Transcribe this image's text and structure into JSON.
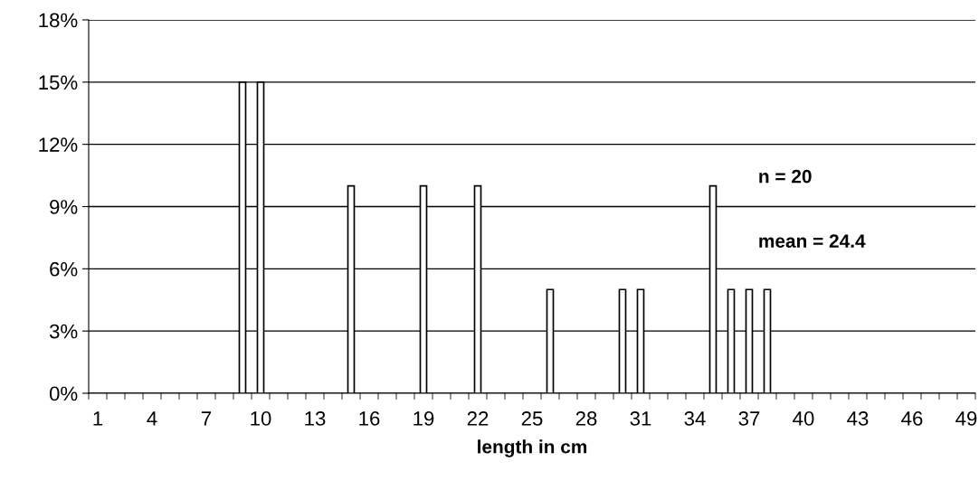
{
  "chart_data": {
    "type": "bar",
    "xlabel": "length in cm",
    "categories": [
      "1",
      null,
      null,
      "4",
      null,
      null,
      "7",
      null,
      null,
      "10",
      null,
      null,
      "13",
      null,
      null,
      "16",
      null,
      null,
      "19",
      null,
      null,
      "22",
      null,
      null,
      "25",
      null,
      null,
      "28",
      null,
      null,
      "31",
      null,
      null,
      "34",
      null,
      null,
      "37",
      null,
      null,
      "40",
      null,
      null,
      "43",
      null,
      null,
      "46",
      null,
      null,
      "49"
    ],
    "values": [
      0,
      0,
      0,
      0,
      0,
      0,
      0,
      0,
      15,
      15,
      0,
      0,
      0,
      0,
      10,
      0,
      0,
      0,
      10,
      0,
      0,
      10,
      0,
      0,
      0,
      5,
      0,
      0,
      0,
      5,
      5,
      0,
      0,
      0,
      10,
      5,
      5,
      5,
      0,
      0,
      0,
      0,
      0,
      0,
      0,
      0,
      0,
      0,
      0
    ],
    "color": "#ffffff",
    "ylim": [
      0,
      18
    ],
    "yticks": [
      {
        "value": 0,
        "label": "0%"
      },
      {
        "value": 3,
        "label": "3%"
      },
      {
        "value": 6,
        "label": "6%"
      },
      {
        "value": 9,
        "label": "9%"
      },
      {
        "value": 12,
        "label": "12%"
      },
      {
        "value": 15,
        "label": "15%"
      },
      {
        "value": 18,
        "label": "18%"
      }
    ],
    "grid": "y",
    "annotations": [
      "n = 20",
      "mean = 24.4"
    ]
  }
}
